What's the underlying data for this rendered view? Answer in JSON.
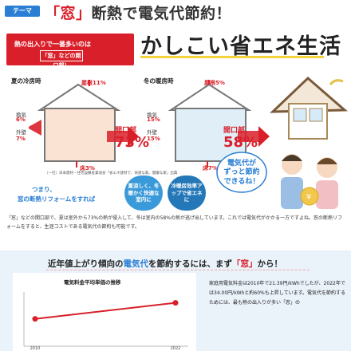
{
  "header": {
    "tag": "テーマ",
    "title_q": "「窓」",
    "title_rest": "断熱で電気代節約！"
  },
  "banner": {
    "line1": "熱の出入りで一番多いのは",
    "line2": "「窓」などの開口部！",
    "big_title": "かしこい省エネ生活"
  },
  "summer": {
    "label": "夏の冷房時",
    "roof": "屋根11%",
    "ventilation": "換気",
    "ventilation_pct": "6%",
    "wall": "外壁",
    "wall_pct": "7%",
    "floor": "床3%",
    "opening_label": "開口部",
    "opening_pct": "73%"
  },
  "winter": {
    "label": "冬の暖房時",
    "roof": "屋根5%",
    "ventilation": "換気",
    "ventilation_pct": "15%",
    "wall": "外壁",
    "wall_pct": "15%",
    "floor": "床7%",
    "opening_label": "開口部",
    "opening_pct": "58%"
  },
  "source_note": "（一社）日本建材・住宅設備産業協会「省エネ建材で、快適な家、健康な家」出典",
  "bottom_left": {
    "line1": "つまり、",
    "line2": "窓の断熱リフォームをすれば"
  },
  "pills": [
    "夏涼しく、冬暖かく快適な室内に",
    "冷暖房効率アップで省エネに"
  ],
  "bubble": {
    "line1": "電気代が",
    "line2": "ずっと節約",
    "line3": "できるね！"
  },
  "body_text": "「窓」などの開口部で、夏は室外から73%の熱が侵入して、冬は室内の58%の熱が逃げ出しています。これでは電気代がかかる一方ですよね。窓の断熱リフォームをすると、生涯コストである電気代の節約も可能です。",
  "lower": {
    "headline_a": "近年値上がり傾向の",
    "headline_b": "電気代",
    "headline_c": "を節約するには、まず",
    "headline_d": "「窓」",
    "headline_e": "から！",
    "chart_title": "電気料金平均単価の推移",
    "right_text": "家庭用電気料金は2010年で21.39円/kWhでしたが、2022年では34.00円/kWhと約60%も上昇しています。電気代を節約するためには、最も熱の出入りが多い「窓」の"
  },
  "chart_data": {
    "type": "line",
    "title": "電気料金平均単価の推移",
    "x": [
      "2010",
      "2022"
    ],
    "series": [
      {
        "values": [
          21.39,
          34.0
        ]
      }
    ],
    "ylabel": "",
    "xlabel": ""
  },
  "colors": {
    "brand_red": "#d9202a",
    "brand_blue": "#2a7fd4",
    "accent_yellow": "#f4d23c"
  }
}
